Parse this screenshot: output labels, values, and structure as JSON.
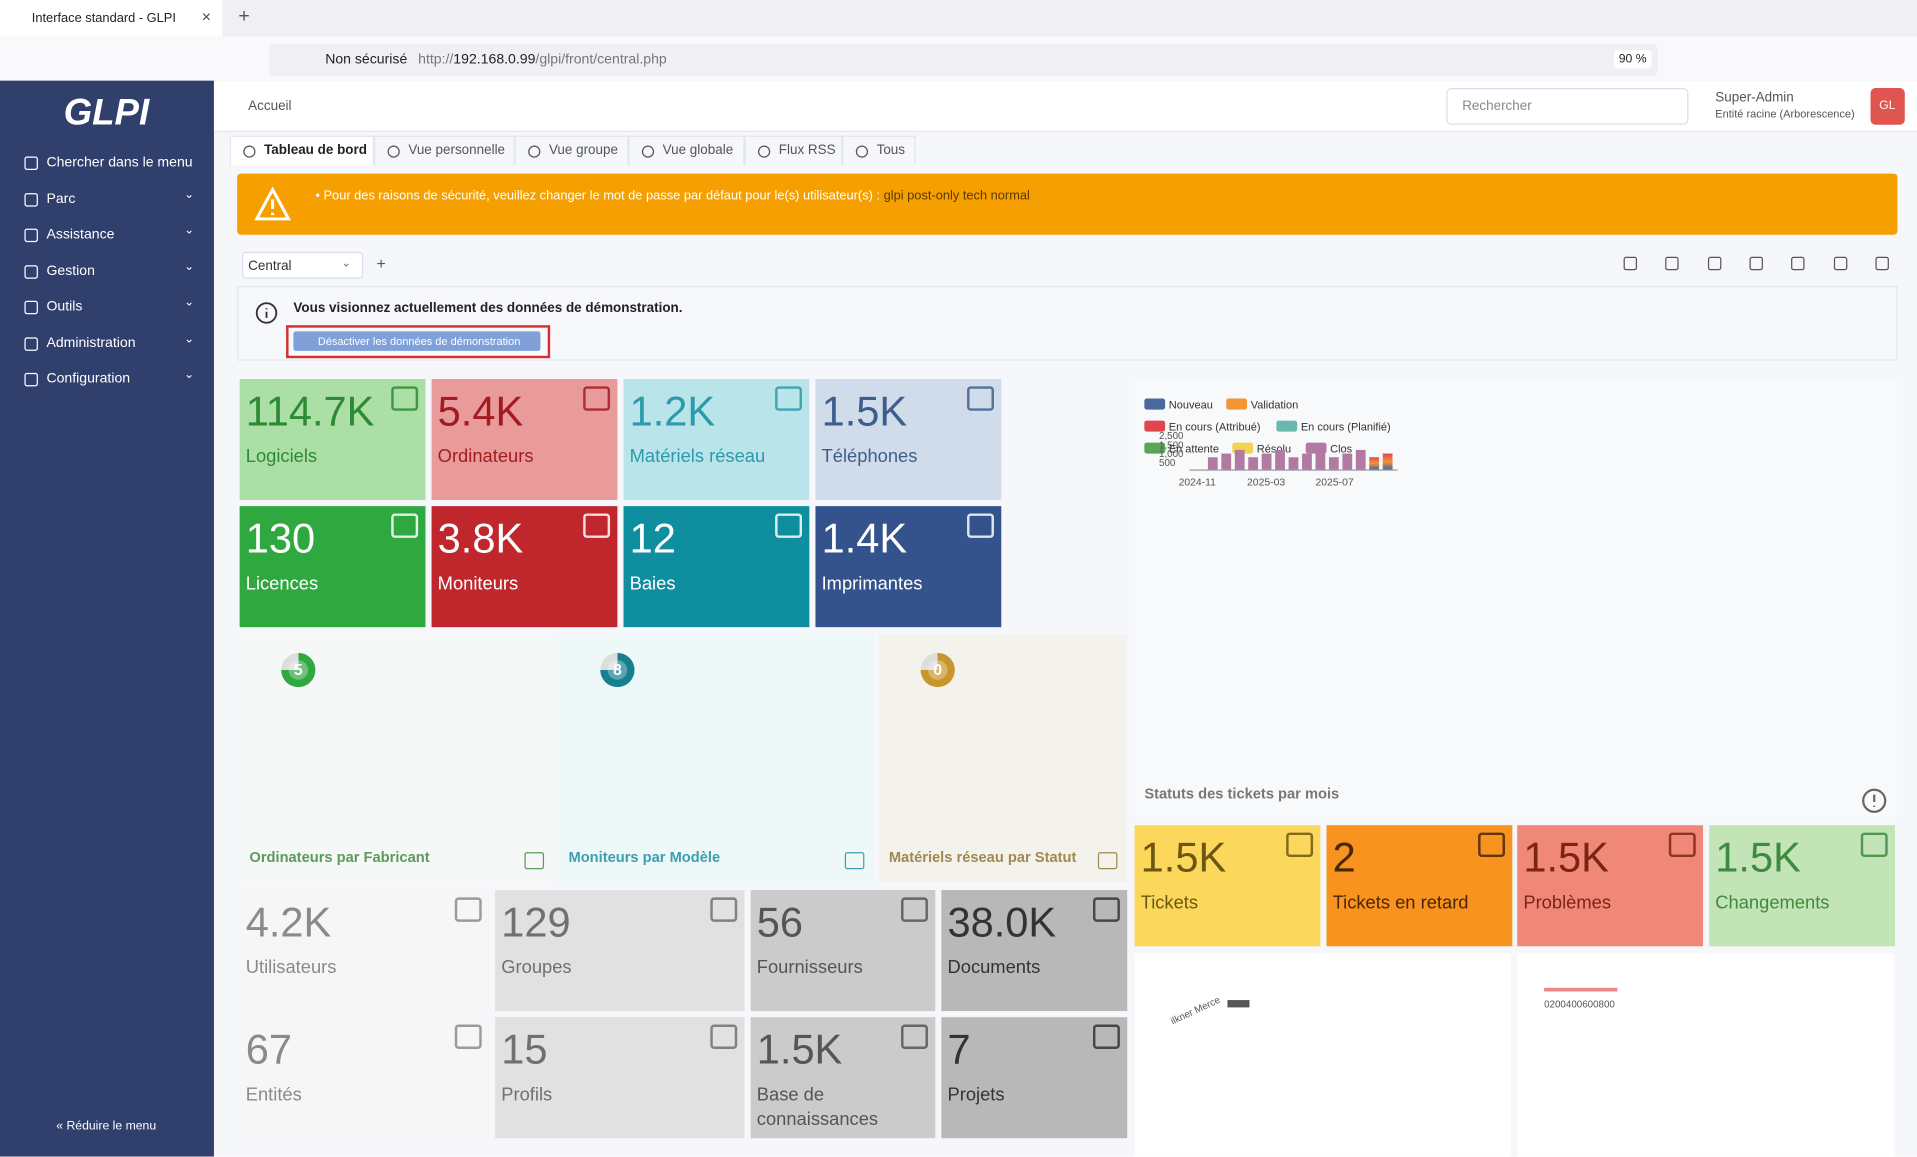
{
  "browser": {
    "tab_title": "Interface standard - GLPI",
    "security": "Non sécurisé",
    "url_prefix": "http://",
    "url_host": "192.168.0.99",
    "url_path": "/glpi/front/central.php",
    "zoom": "90 %"
  },
  "sidebar": {
    "logo": "GLPI",
    "items": [
      "Chercher dans le menu",
      "Parc",
      "Assistance",
      "Gestion",
      "Outils",
      "Administration",
      "Configuration"
    ],
    "collapse": "Réduire le menu"
  },
  "header": {
    "breadcrumb": "Accueil",
    "search_placeholder": "Rechercher",
    "user": "Super-Admin",
    "entity": "Entité racine (Arborescence)",
    "avatar": "GL"
  },
  "tabs": [
    "Tableau de bord",
    "Vue personnelle",
    "Vue groupe",
    "Vue globale",
    "Flux RSS",
    "Tous"
  ],
  "alert": {
    "text": "Pour des raisons de sécurité, veuillez changer le mot de passe par défaut pour le(s) utilisateur(s) :",
    "users": "glpi post-only tech normal"
  },
  "dashboard": {
    "selected": "Central",
    "add": "+"
  },
  "demo": {
    "message": "Vous visionnez actuellement des données de démonstration.",
    "button": "Désactiver les données de démonstration"
  },
  "tiles": [
    {
      "value": "114.7K",
      "label": "Logiciels",
      "color": "#acdfa6",
      "text_color": "#2b8a33"
    },
    {
      "value": "5.4K",
      "label": "Ordinateurs",
      "color": "#e99b9b",
      "text_color": "#a31b1f"
    },
    {
      "value": "1.2K",
      "label": "Matériels réseau",
      "color": "#b8e4ea",
      "text_color": "#2b9aaa"
    },
    {
      "value": "1.5K",
      "label": "Téléphones",
      "color": "#d0dcea",
      "text_color": "#3d5e8c"
    },
    {
      "value": "130",
      "label": "Licences",
      "color": "#2fa840",
      "text_color": "#ffffff"
    },
    {
      "value": "3.8K",
      "label": "Moniteurs",
      "color": "#c0272d",
      "text_color": "#ffffff"
    },
    {
      "value": "12",
      "label": "Baies",
      "color": "#0f8ea0",
      "text_color": "#ffffff"
    },
    {
      "value": "1.4K",
      "label": "Imprimantes",
      "color": "#34528b",
      "text_color": "#ffffff"
    },
    {
      "value": "1.5K",
      "label": "Tickets",
      "color": "#fbd75b",
      "text_color": "#6b5710"
    },
    {
      "value": "2",
      "label": "Tickets en retard",
      "color": "#f7931e",
      "text_color": "#4a2506"
    },
    {
      "value": "1.5K",
      "label": "Problèmes",
      "color": "#f08878",
      "text_color": "#7a2418"
    },
    {
      "value": "1.5K",
      "label": "Changements",
      "color": "#c3e4b6",
      "text_color": "#3e8a3e"
    },
    {
      "value": "4.2K",
      "label": "Utilisateurs",
      "color": "#f6f6f6",
      "text_color": "#8a8a8a"
    },
    {
      "value": "129",
      "label": "Groupes",
      "color": "#e1e1e1",
      "text_color": "#707070"
    },
    {
      "value": "56",
      "label": "Fournisseurs",
      "color": "#cbcbcb",
      "text_color": "#555555"
    },
    {
      "value": "38.0K",
      "label": "Documents",
      "color": "#b8b8b8",
      "text_color": "#333333"
    },
    {
      "value": "67",
      "label": "Entités",
      "color": "#f6f6f6",
      "text_color": "#8a8a8a"
    },
    {
      "value": "15",
      "label": "Profils",
      "color": "#e1e1e1",
      "text_color": "#707070"
    },
    {
      "value": "1.5K",
      "label": "Base de connaissances",
      "color": "#cbcbcb",
      "text_color": "#555555"
    },
    {
      "value": "7",
      "label": "Projets",
      "color": "#b8b8b8",
      "text_color": "#333333"
    }
  ],
  "donut_cards": [
    {
      "value": "5",
      "title": "Ordinateurs par Fabricant",
      "color": "#f6f8f8",
      "text_color": "#5a9a5a",
      "ring": "#2fa840"
    },
    {
      "value": "8",
      "title": "Moniteurs par Modèle",
      "color": "#eff8f9",
      "text_color": "#3aa0b0",
      "ring": "#16808f"
    },
    {
      "value": "0",
      "title": "Matériels réseau par Statut",
      "color": "#f4f2ec",
      "text_color": "#a08a50",
      "ring": "#c8962c"
    }
  ],
  "tickets_chart": {
    "title": "Statuts des tickets par mois",
    "legend": [
      {
        "name": "Nouveau",
        "color": "#49689e"
      },
      {
        "name": "Validation",
        "color": "#f59432"
      },
      {
        "name": "En cours (Attribué)",
        "color": "#e0474c"
      },
      {
        "name": "En cours (Planifié)",
        "color": "#6bb8b0"
      },
      {
        "name": "En attente",
        "color": "#5aa657"
      },
      {
        "name": "Résolu",
        "color": "#f2d24e"
      },
      {
        "name": "Clos",
        "color": "#b279a2"
      }
    ],
    "y_labels": [
      "2,500",
      "1,500",
      "1,000",
      "500"
    ],
    "x_labels": [
      "2024-11",
      "2025-03",
      "2025-07"
    ]
  },
  "mini_charts": [
    {
      "label": "ilkner Merce"
    },
    {
      "label": "0200400600800"
    }
  ]
}
